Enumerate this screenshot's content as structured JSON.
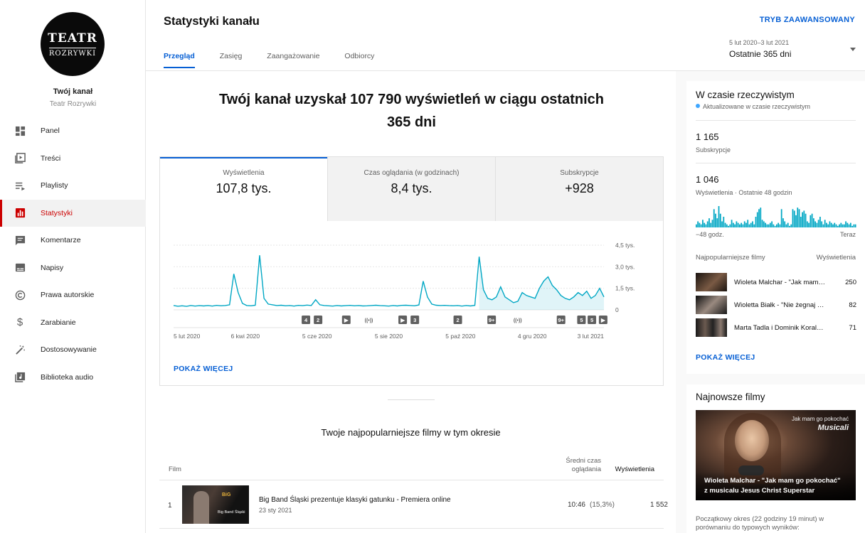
{
  "channel": {
    "avatar_line1": "TEATR",
    "avatar_line2": "ROZRYWKI",
    "title": "Twój kanał",
    "name": "Teatr Rozrywki"
  },
  "sidebar": {
    "items": [
      {
        "label": "Panel",
        "icon": "dashboard-icon"
      },
      {
        "label": "Treści",
        "icon": "video-library-icon"
      },
      {
        "label": "Playlisty",
        "icon": "playlist-icon"
      },
      {
        "label": "Statystyki",
        "icon": "analytics-icon",
        "active": true
      },
      {
        "label": "Komentarze",
        "icon": "comment-icon"
      },
      {
        "label": "Napisy",
        "icon": "subtitles-icon"
      },
      {
        "label": "Prawa autorskie",
        "icon": "copyright-icon"
      },
      {
        "label": "Zarabianie",
        "icon": "dollar-icon"
      },
      {
        "label": "Dostosowywanie",
        "icon": "magic-wand-icon"
      },
      {
        "label": "Biblioteka audio",
        "icon": "audio-library-icon"
      }
    ]
  },
  "header": {
    "title": "Statystyki kanału",
    "advanced": "TRYB ZAAWANSOWANY",
    "tabs": [
      "Przegląd",
      "Zasięg",
      "Zaangażowanie",
      "Odbiorcy"
    ],
    "range_dates": "5 lut 2020–3 lut 2021",
    "range_label": "Ostatnie 365 dni"
  },
  "main": {
    "headline_line1": "Twój kanał uzyskał 107 790 wyświetleń w ciągu ostatnich",
    "headline_line2": "365 dni",
    "metrics": [
      {
        "label": "Wyświetlenia",
        "value": "107,8 tys."
      },
      {
        "label": "Czas oglądania (w godzinach)",
        "value": "8,4 tys."
      },
      {
        "label": "Subskrypcje",
        "value": "+928"
      }
    ],
    "show_more": "POKAŻ WIĘCEJ",
    "top_title": "Twoje najpopularniejsze filmy w tym okresie",
    "table": {
      "col_film": "Film",
      "col_avg_line1": "Średni czas",
      "col_avg_line2": "oglądania",
      "col_views": "Wyświetlenia",
      "rows": [
        {
          "num": "1",
          "title": "Big Band Śląski prezentuje klasyki gatunku - Premiera online",
          "date": "23 sty 2021",
          "avg": "10:46",
          "pct": "(15,3%)",
          "views": "1 552",
          "thumb_label1": "BiG",
          "thumb_label2": "Big Band Śląski"
        }
      ]
    }
  },
  "chart_data": {
    "type": "area",
    "series": [
      {
        "name": "Wyświetlenia",
        "values": [
          300,
          250,
          280,
          240,
          300,
          260,
          290,
          270,
          300,
          260,
          310,
          280,
          300,
          350,
          2500,
          1200,
          450,
          300,
          280,
          320,
          3800,
          800,
          400,
          350,
          300,
          320,
          280,
          300,
          260,
          310,
          290,
          330,
          300,
          700,
          350,
          300,
          280,
          260,
          300,
          270,
          290,
          310,
          280,
          300,
          270,
          280,
          300,
          320,
          290,
          280,
          260,
          300,
          270,
          310,
          320,
          300,
          280,
          340,
          2000,
          900,
          400,
          320,
          300,
          310,
          290,
          280,
          300,
          260,
          300,
          270,
          310,
          3700,
          1400,
          800,
          700,
          900,
          1600,
          900,
          700,
          500,
          600,
          1200,
          1000,
          900,
          800,
          1500,
          2000,
          2300,
          1700,
          1400,
          1000,
          800,
          700,
          900,
          1200,
          1000,
          1300,
          800,
          1000,
          1500,
          900
        ]
      }
    ],
    "x_tick_labels": [
      "5 lut 2020",
      "6 kwi 2020",
      "5 cze 2020",
      "5 sie 2020",
      "5 paź 2020",
      "4 gru 2020",
      "3 lut 2021"
    ],
    "y_tick_labels": [
      "4,5 tys.",
      "3,0 tys.",
      "1,5 tys.",
      "0"
    ],
    "ylim": [
      0,
      4500
    ],
    "grid": true,
    "markers": [
      {
        "label": "4",
        "at": 0.305
      },
      {
        "label": "2",
        "at": 0.333
      },
      {
        "label": "▶",
        "at": 0.398
      },
      {
        "label": "((•))",
        "at": 0.45
      },
      {
        "label": "▶",
        "at": 0.528
      },
      {
        "label": "3",
        "at": 0.556
      },
      {
        "label": "2",
        "at": 0.655
      },
      {
        "label": "9+",
        "at": 0.733
      },
      {
        "label": "((•))",
        "at": 0.793
      },
      {
        "label": "9+",
        "at": 0.893
      },
      {
        "label": "5",
        "at": 0.94
      },
      {
        "label": "5",
        "at": 0.964
      },
      {
        "label": "▶",
        "at": 0.99
      }
    ]
  },
  "realtime": {
    "title": "W czasie rzeczywistym",
    "updated": "Aktualizowane w czasie rzeczywistym",
    "subs_value": "1 165",
    "subs_label": "Subskrypcje",
    "views_value": "1 046",
    "views_label": "Wyświetlenia · Ostatnie 48 godzin",
    "bars": [
      2,
      4,
      3,
      2,
      5,
      3,
      2,
      4,
      6,
      3,
      5,
      12,
      9,
      6,
      14,
      9,
      4,
      7,
      3,
      2,
      1,
      2,
      5,
      3,
      2,
      4,
      3,
      2,
      3,
      2,
      4,
      3,
      5,
      2,
      3,
      4,
      2,
      7,
      10,
      12,
      13,
      5,
      4,
      3,
      2,
      2,
      3,
      4,
      2,
      1,
      2,
      3,
      2,
      12,
      6,
      4,
      2,
      3,
      1,
      2,
      12,
      11,
      8,
      13,
      12,
      7,
      10,
      11,
      9,
      4,
      3,
      8,
      9,
      6,
      4,
      3,
      5,
      7,
      4,
      2,
      5,
      3,
      2,
      4,
      3,
      2,
      3,
      2,
      1,
      2,
      3,
      2,
      2,
      4,
      3,
      2,
      3,
      1,
      2,
      2
    ],
    "axis_left": "−48 godz.",
    "axis_right": "Teraz",
    "popular_header": "Najpopularniejsze filmy",
    "popular_views_header": "Wyświetlenia",
    "popular": [
      {
        "title": "Wioleta Malchar - \"Jak mam go pokochać\"",
        "views": "250"
      },
      {
        "title": "Wioletta Białk - \"Nie żegnaj mnie\"",
        "views": "82"
      },
      {
        "title": "Marta Tadla i Dominik Koralewski",
        "views": "71"
      }
    ],
    "more": "POKAŻ WIĘCEJ"
  },
  "latest": {
    "title": "Najnowsze filmy",
    "img_top1": "Jak mam go pokochać",
    "img_top2": "Musicali",
    "caption_line1": "Wioleta Malchar - \"Jak mam go pokochać\"",
    "caption_line2": "z musicalu Jesus Christ Superstar",
    "desc": "Początkowy okres (22 godziny 19 minut) w porównaniu do typowych wyników:"
  },
  "colors": {
    "accent": "#065fd4",
    "active": "#cc0000",
    "chart": "#00a7c4"
  }
}
